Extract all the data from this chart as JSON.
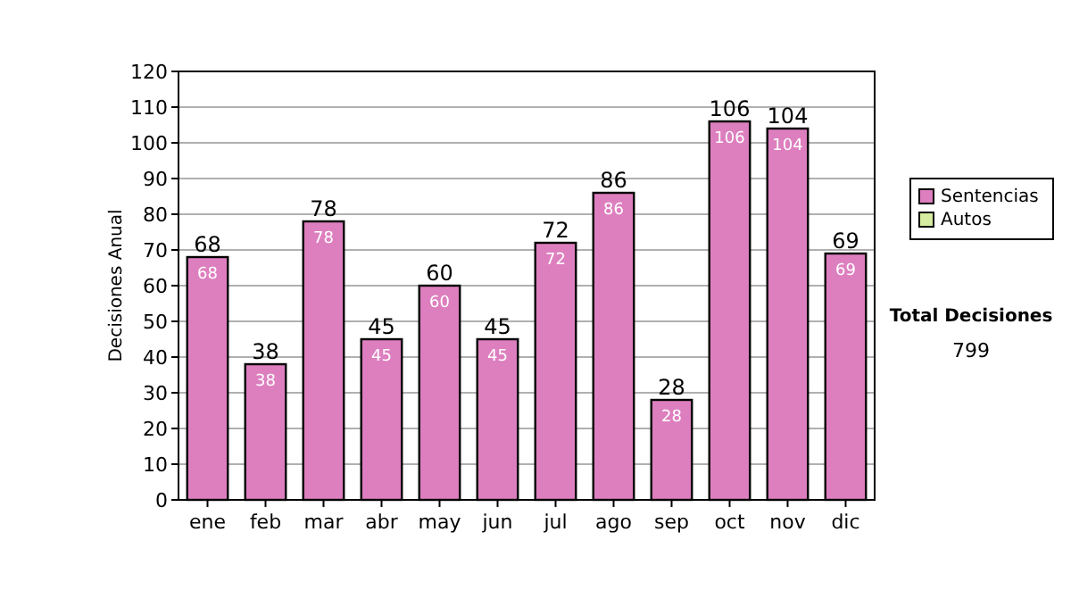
{
  "chart_data": {
    "type": "bar",
    "ylabel": "Decisiones Anual",
    "categories": [
      "ene",
      "feb",
      "mar",
      "abr",
      "may",
      "jun",
      "jul",
      "ago",
      "sep",
      "oct",
      "nov",
      "dic"
    ],
    "series": [
      {
        "name": "Sentencias",
        "color": "#dd7fbf",
        "values": [
          68,
          38,
          78,
          45,
          60,
          45,
          72,
          86,
          28,
          106,
          104,
          69
        ],
        "value_labels": [
          "68",
          "38",
          "78",
          "45",
          "60",
          "45",
          "72",
          "86",
          "28",
          "106",
          "104",
          "69"
        ]
      },
      {
        "name": "Autos",
        "color": "#d6eca0",
        "values": [
          0,
          0,
          0,
          0,
          0,
          0,
          0,
          0,
          0,
          0,
          0,
          0
        ]
      }
    ],
    "totals": [
      "68",
      "38",
      "78",
      "45",
      "60",
      "45",
      "72",
      "86",
      "28",
      "106",
      "104",
      "69"
    ],
    "ylim": [
      0,
      120
    ],
    "yticks": [
      0,
      10,
      20,
      30,
      40,
      50,
      60,
      70,
      80,
      90,
      100,
      110,
      120
    ],
    "grid": "y",
    "legend": "right",
    "annotations": [
      "Total Decisiones",
      "799"
    ]
  }
}
